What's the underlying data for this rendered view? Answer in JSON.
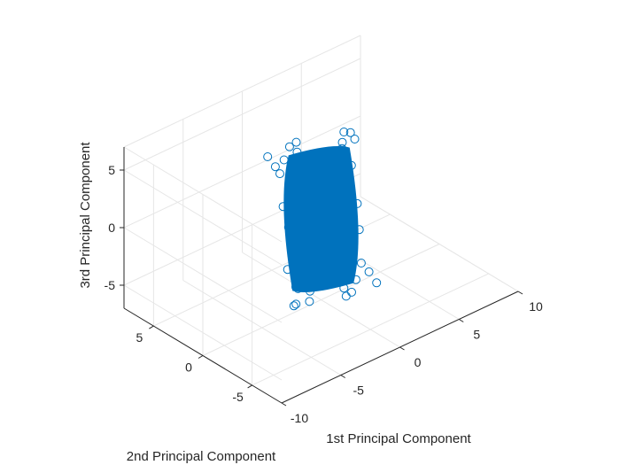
{
  "chart_data": {
    "type": "scatter",
    "view": "3d",
    "title": "",
    "xlabel": "1st Principal Component",
    "ylabel": "2nd Principal Component",
    "zlabel": "3rd Principal Component",
    "xlim": [
      -10,
      10
    ],
    "ylim": [
      -8,
      8
    ],
    "zlim": [
      -7,
      7
    ],
    "xticks": [
      {
        "value": -10,
        "label": "-10"
      },
      {
        "value": -5,
        "label": "-5"
      },
      {
        "value": 0,
        "label": "0"
      },
      {
        "value": 5,
        "label": "5"
      },
      {
        "value": 10,
        "label": "10"
      }
    ],
    "yticks": [
      {
        "value": -5,
        "label": "-5"
      },
      {
        "value": 0,
        "label": "0"
      },
      {
        "value": 5,
        "label": "5"
      }
    ],
    "zticks": [
      {
        "value": -5,
        "label": "-5"
      },
      {
        "value": 0,
        "label": "0"
      },
      {
        "value": 5,
        "label": "5"
      }
    ],
    "grid": true,
    "marker": "o",
    "marker_color": "#0072BD",
    "points": [
      [
        -6.2,
        -5.1,
        -0.4
      ],
      [
        -6.8,
        -5.6,
        0.3
      ],
      [
        -5.9,
        -4.6,
        1.1
      ],
      [
        -7.3,
        -6.0,
        -0.9
      ],
      [
        -6.5,
        -4.9,
        2.2
      ],
      [
        -5.4,
        -5.3,
        -1.8
      ],
      [
        -7.0,
        -5.0,
        1.6
      ],
      [
        -6.1,
        -6.2,
        -0.1
      ],
      [
        -5.7,
        -4.3,
        -2.4
      ],
      [
        -6.9,
        -5.4,
        2.9
      ],
      [
        6.1,
        5.2,
        0.5
      ],
      [
        6.7,
        5.5,
        -0.6
      ],
      [
        5.8,
        4.8,
        1.4
      ],
      [
        7.2,
        6.1,
        -1.2
      ],
      [
        6.4,
        4.7,
        2.0
      ],
      [
        5.5,
        5.6,
        -2.1
      ],
      [
        7.1,
        5.1,
        0.9
      ],
      [
        6.0,
        6.0,
        -0.3
      ],
      [
        5.6,
        4.4,
        2.6
      ],
      [
        7.4,
        5.8,
        -1.9
      ],
      [
        -1.8,
        1.6,
        5.2
      ],
      [
        -1.2,
        1.0,
        5.9
      ],
      [
        -2.2,
        2.0,
        4.6
      ],
      [
        -1.5,
        1.4,
        6.3
      ],
      [
        -0.9,
        0.7,
        4.9
      ],
      [
        -2.6,
        2.3,
        5.5
      ],
      [
        -1.9,
        1.9,
        3.9
      ],
      [
        -1.1,
        1.2,
        6.6
      ],
      [
        1.7,
        -1.5,
        -5.3
      ],
      [
        1.1,
        -1.0,
        -6.0
      ],
      [
        2.3,
        -2.1,
        -4.6
      ],
      [
        1.5,
        -1.3,
        -6.4
      ],
      [
        0.8,
        -0.6,
        -4.9
      ],
      [
        2.7,
        -2.4,
        -5.6
      ],
      [
        1.9,
        -1.8,
        -3.8
      ],
      [
        1.2,
        -1.1,
        -6.7
      ],
      [
        -2.4,
        -1.8,
        3.1
      ],
      [
        2.2,
        1.9,
        -2.8
      ],
      [
        -3.1,
        -3.0,
        -2.5
      ],
      [
        3.3,
        2.9,
        2.4
      ],
      [
        -4.0,
        -2.2,
        0.2
      ],
      [
        4.1,
        2.4,
        -0.4
      ],
      [
        -1.6,
        -3.4,
        1.7
      ],
      [
        1.4,
        3.2,
        -1.5
      ],
      [
        -0.3,
        0.4,
        0.1
      ],
      [
        0.6,
        -0.5,
        0.8
      ],
      [
        -0.8,
        0.2,
        -1.0
      ],
      [
        0.2,
        1.1,
        1.9
      ],
      [
        -1.3,
        -0.6,
        -1.7
      ],
      [
        1.0,
        0.3,
        2.5
      ],
      [
        -2.0,
        0.9,
        -0.2
      ],
      [
        2.4,
        -0.8,
        0.6
      ],
      [
        -3.5,
        -1.2,
        1.4
      ],
      [
        3.6,
        1.4,
        -1.3
      ],
      [
        -4.8,
        -3.6,
        0.7
      ],
      [
        4.9,
        3.8,
        -0.8
      ],
      [
        -0.5,
        2.1,
        3.0
      ],
      [
        0.4,
        -2.0,
        -3.2
      ],
      [
        -2.8,
        0.5,
        2.2
      ],
      [
        2.9,
        -0.4,
        -2.1
      ]
    ]
  }
}
